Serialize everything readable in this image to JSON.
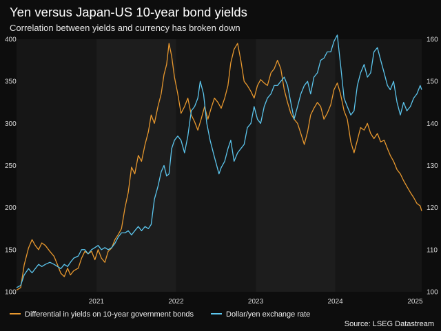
{
  "colors": {
    "background": "#0d0d0d",
    "plot_band_a": "#161616",
    "plot_band_b": "#1d1d1d",
    "yield_series": "#e8982e",
    "fx_series": "#5cc6ee",
    "gridline": "#2e2e2e"
  },
  "chart_data": {
    "type": "line",
    "title": "Yen versus Japan-US 10-year bond yields",
    "subtitle": "Correlation between yields and currency has broken down",
    "source": "Source: LSEG Datastream",
    "x_axis": {
      "type": "date",
      "range": [
        "2020-07-01",
        "2025-08-01"
      ],
      "tick_labels": [
        {
          "label": "2021",
          "date": "2021-01-01"
        },
        {
          "label": "2022",
          "date": "2022-01-01"
        },
        {
          "label": "2023",
          "date": "2023-01-01"
        },
        {
          "label": "2024",
          "date": "2024-01-01"
        },
        {
          "label": "2025",
          "date": "2025-01-01"
        }
      ]
    },
    "y_left": {
      "min": 100,
      "max": 400,
      "ticks": [
        100,
        150,
        200,
        250,
        300,
        350,
        400
      ]
    },
    "y_right": {
      "min": 100,
      "max": 160,
      "ticks": [
        100,
        110,
        120,
        130,
        140,
        150,
        160
      ]
    },
    "grid": "alternating annual bands",
    "legend_position": "bottom-left",
    "series": [
      {
        "name": "Differential in yields on 10-year government bonds",
        "axis": "left",
        "points": [
          [
            "2020-07-01",
            102
          ],
          [
            "2020-07-20",
            105
          ],
          [
            "2020-08-05",
            132
          ],
          [
            "2020-08-25",
            152
          ],
          [
            "2020-09-10",
            162
          ],
          [
            "2020-09-25",
            155
          ],
          [
            "2020-10-10",
            150
          ],
          [
            "2020-10-25",
            158
          ],
          [
            "2020-11-10",
            155
          ],
          [
            "2020-12-01",
            148
          ],
          [
            "2020-12-20",
            142
          ],
          [
            "2021-01-05",
            132
          ],
          [
            "2021-01-20",
            122
          ],
          [
            "2021-02-05",
            118
          ],
          [
            "2021-02-20",
            128
          ],
          [
            "2021-03-05",
            120
          ],
          [
            "2021-03-20",
            125
          ],
          [
            "2021-04-10",
            128
          ],
          [
            "2021-04-25",
            140
          ],
          [
            "2021-05-10",
            148
          ],
          [
            "2021-05-25",
            145
          ],
          [
            "2021-06-10",
            148
          ],
          [
            "2021-06-25",
            138
          ],
          [
            "2021-07-10",
            150
          ],
          [
            "2021-07-25",
            140
          ],
          [
            "2021-08-10",
            135
          ],
          [
            "2021-08-25",
            148
          ],
          [
            "2021-09-10",
            152
          ],
          [
            "2021-09-25",
            162
          ],
          [
            "2021-10-10",
            168
          ],
          [
            "2021-10-25",
            175
          ],
          [
            "2021-11-10",
            200
          ],
          [
            "2021-11-25",
            218
          ],
          [
            "2021-12-10",
            248
          ],
          [
            "2021-12-25",
            240
          ],
          [
            "2022-01-10",
            262
          ],
          [
            "2022-01-25",
            255
          ],
          [
            "2022-02-10",
            275
          ],
          [
            "2022-02-25",
            290
          ],
          [
            "2022-03-10",
            310
          ],
          [
            "2022-03-25",
            300
          ],
          [
            "2022-04-10",
            320
          ],
          [
            "2022-04-25",
            335
          ],
          [
            "2022-05-08",
            358
          ],
          [
            "2022-05-20",
            370
          ],
          [
            "2022-05-31",
            395
          ],
          [
            "2022-06-12",
            380
          ],
          [
            "2022-06-25",
            355
          ],
          [
            "2022-07-10",
            335
          ],
          [
            "2022-07-25",
            312
          ],
          [
            "2022-08-10",
            320
          ],
          [
            "2022-08-25",
            330
          ],
          [
            "2022-09-10",
            310
          ],
          [
            "2022-09-25",
            302
          ],
          [
            "2022-10-10",
            292
          ],
          [
            "2022-10-25",
            305
          ],
          [
            "2022-11-10",
            320
          ],
          [
            "2022-11-25",
            305
          ],
          [
            "2022-12-10",
            318
          ],
          [
            "2022-12-25",
            330
          ],
          [
            "2023-01-10",
            325
          ],
          [
            "2023-01-25",
            318
          ],
          [
            "2023-02-10",
            330
          ],
          [
            "2023-02-25",
            345
          ],
          [
            "2023-03-10",
            372
          ],
          [
            "2023-03-25",
            388
          ],
          [
            "2023-04-10",
            395
          ],
          [
            "2023-04-25",
            375
          ],
          [
            "2023-05-10",
            350
          ],
          [
            "2023-05-25",
            345
          ],
          [
            "2023-06-10",
            338
          ],
          [
            "2023-06-25",
            330
          ],
          [
            "2023-07-10",
            345
          ],
          [
            "2023-07-25",
            352
          ],
          [
            "2023-08-10",
            348
          ],
          [
            "2023-08-25",
            345
          ],
          [
            "2023-09-10",
            360
          ],
          [
            "2023-09-25",
            365
          ],
          [
            "2023-10-10",
            375
          ],
          [
            "2023-10-25",
            365
          ],
          [
            "2023-11-10",
            340
          ],
          [
            "2023-11-25",
            325
          ],
          [
            "2023-12-10",
            312
          ],
          [
            "2023-12-25",
            305
          ],
          [
            "2024-01-10",
            300
          ],
          [
            "2024-01-25",
            288
          ],
          [
            "2024-02-10",
            275
          ],
          [
            "2024-02-25",
            290
          ],
          [
            "2024-03-10",
            310
          ],
          [
            "2024-03-25",
            318
          ],
          [
            "2024-04-10",
            325
          ],
          [
            "2024-04-25",
            320
          ],
          [
            "2024-05-10",
            305
          ],
          [
            "2024-05-25",
            312
          ],
          [
            "2024-06-10",
            322
          ],
          [
            "2024-06-25",
            340
          ],
          [
            "2024-07-10",
            348
          ],
          [
            "2024-07-25",
            335
          ],
          [
            "2024-08-10",
            315
          ],
          [
            "2024-08-25",
            305
          ],
          [
            "2024-09-10",
            278
          ],
          [
            "2024-09-25",
            265
          ],
          [
            "2024-10-10",
            280
          ],
          [
            "2024-10-25",
            295
          ],
          [
            "2024-11-10",
            292
          ],
          [
            "2024-11-25",
            300
          ],
          [
            "2024-12-10",
            288
          ],
          [
            "2024-12-25",
            282
          ],
          [
            "2025-01-10",
            288
          ],
          [
            "2025-01-25",
            278
          ],
          [
            "2025-02-10",
            280
          ],
          [
            "2025-02-25",
            270
          ],
          [
            "2025-03-10",
            262
          ],
          [
            "2025-03-25",
            255
          ],
          [
            "2025-04-10",
            245
          ],
          [
            "2025-04-25",
            240
          ],
          [
            "2025-05-10",
            232
          ],
          [
            "2025-05-25",
            225
          ],
          [
            "2025-06-10",
            218
          ],
          [
            "2025-06-25",
            212
          ],
          [
            "2025-07-10",
            205
          ],
          [
            "2025-07-25",
            202
          ],
          [
            "2025-08-01",
            196
          ]
        ]
      },
      {
        "name": "Dollar/yen exchange rate",
        "axis": "right",
        "points": [
          [
            "2020-07-01",
            101
          ],
          [
            "2020-07-20",
            101.5
          ],
          [
            "2020-08-05",
            104
          ],
          [
            "2020-08-25",
            105.5
          ],
          [
            "2020-09-10",
            104.5
          ],
          [
            "2020-09-25",
            105.5
          ],
          [
            "2020-10-10",
            106.5
          ],
          [
            "2020-10-25",
            106
          ],
          [
            "2020-11-10",
            106.5
          ],
          [
            "2020-12-01",
            107
          ],
          [
            "2020-12-20",
            106.5
          ],
          [
            "2021-01-05",
            106
          ],
          [
            "2021-01-20",
            105.5
          ],
          [
            "2021-02-05",
            106.5
          ],
          [
            "2021-02-20",
            106
          ],
          [
            "2021-03-05",
            107
          ],
          [
            "2021-03-20",
            108
          ],
          [
            "2021-04-10",
            108.5
          ],
          [
            "2021-04-25",
            110
          ],
          [
            "2021-05-10",
            110
          ],
          [
            "2021-05-25",
            109
          ],
          [
            "2021-06-10",
            110
          ],
          [
            "2021-06-25",
            110.5
          ],
          [
            "2021-07-10",
            111
          ],
          [
            "2021-07-25",
            110
          ],
          [
            "2021-08-10",
            110.5
          ],
          [
            "2021-08-25",
            110
          ],
          [
            "2021-09-10",
            110.5
          ],
          [
            "2021-09-25",
            111.5
          ],
          [
            "2021-10-10",
            113
          ],
          [
            "2021-10-25",
            114
          ],
          [
            "2021-11-10",
            114
          ],
          [
            "2021-11-25",
            114.5
          ],
          [
            "2021-12-10",
            113.5
          ],
          [
            "2021-12-25",
            114.5
          ],
          [
            "2022-01-10",
            115.5
          ],
          [
            "2022-01-25",
            114.5
          ],
          [
            "2022-02-10",
            115.5
          ],
          [
            "2022-02-25",
            115
          ],
          [
            "2022-03-10",
            116
          ],
          [
            "2022-03-25",
            122
          ],
          [
            "2022-04-10",
            125
          ],
          [
            "2022-04-25",
            128.5
          ],
          [
            "2022-05-08",
            130
          ],
          [
            "2022-05-20",
            127.5
          ],
          [
            "2022-05-31",
            128
          ],
          [
            "2022-06-12",
            134
          ],
          [
            "2022-06-25",
            136
          ],
          [
            "2022-07-10",
            137
          ],
          [
            "2022-07-25",
            136
          ],
          [
            "2022-08-10",
            133
          ],
          [
            "2022-08-25",
            137
          ],
          [
            "2022-09-10",
            143
          ],
          [
            "2022-09-25",
            144
          ],
          [
            "2022-10-10",
            146
          ],
          [
            "2022-10-21",
            150
          ],
          [
            "2022-11-05",
            147
          ],
          [
            "2022-11-20",
            140
          ],
          [
            "2022-12-05",
            136
          ],
          [
            "2022-12-25",
            132
          ],
          [
            "2023-01-15",
            128
          ],
          [
            "2023-01-25",
            129.5
          ],
          [
            "2023-02-10",
            131
          ],
          [
            "2023-02-25",
            134
          ],
          [
            "2023-03-10",
            136
          ],
          [
            "2023-03-25",
            131
          ],
          [
            "2023-04-10",
            133
          ],
          [
            "2023-04-25",
            134
          ],
          [
            "2023-05-10",
            135
          ],
          [
            "2023-05-25",
            139
          ],
          [
            "2023-06-10",
            140
          ],
          [
            "2023-06-25",
            144
          ],
          [
            "2023-07-10",
            141
          ],
          [
            "2023-07-25",
            140
          ],
          [
            "2023-08-10",
            144
          ],
          [
            "2023-08-25",
            146
          ],
          [
            "2023-09-10",
            147
          ],
          [
            "2023-09-25",
            149
          ],
          [
            "2023-10-10",
            149
          ],
          [
            "2023-10-25",
            150
          ],
          [
            "2023-11-10",
            151
          ],
          [
            "2023-11-25",
            149
          ],
          [
            "2023-12-10",
            145
          ],
          [
            "2023-12-25",
            141
          ],
          [
            "2024-01-10",
            144
          ],
          [
            "2024-01-25",
            147
          ],
          [
            "2024-02-10",
            149
          ],
          [
            "2024-02-25",
            150
          ],
          [
            "2024-03-10",
            147
          ],
          [
            "2024-03-25",
            151
          ],
          [
            "2024-04-10",
            152
          ],
          [
            "2024-04-25",
            155
          ],
          [
            "2024-05-10",
            155.5
          ],
          [
            "2024-05-25",
            157
          ],
          [
            "2024-06-10",
            157
          ],
          [
            "2024-06-25",
            159.5
          ],
          [
            "2024-07-10",
            161
          ],
          [
            "2024-07-25",
            154
          ],
          [
            "2024-08-10",
            146
          ],
          [
            "2024-08-25",
            144
          ],
          [
            "2024-09-10",
            142
          ],
          [
            "2024-09-25",
            143
          ],
          [
            "2024-10-10",
            149
          ],
          [
            "2024-10-25",
            152
          ],
          [
            "2024-11-10",
            154
          ],
          [
            "2024-11-25",
            151
          ],
          [
            "2024-12-10",
            152
          ],
          [
            "2024-12-25",
            157
          ],
          [
            "2025-01-10",
            158
          ],
          [
            "2025-01-25",
            155
          ],
          [
            "2025-02-10",
            152
          ],
          [
            "2025-02-25",
            149
          ],
          [
            "2025-03-10",
            148
          ],
          [
            "2025-03-25",
            150
          ],
          [
            "2025-04-10",
            145
          ],
          [
            "2025-04-25",
            142
          ],
          [
            "2025-05-10",
            145
          ],
          [
            "2025-05-25",
            143
          ],
          [
            "2025-06-10",
            144
          ],
          [
            "2025-06-25",
            146
          ],
          [
            "2025-07-10",
            147
          ],
          [
            "2025-07-25",
            149
          ],
          [
            "2025-08-01",
            148
          ]
        ]
      }
    ]
  }
}
